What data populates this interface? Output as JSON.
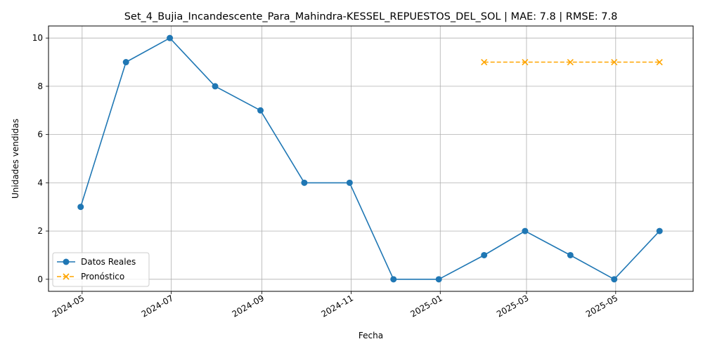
{
  "chart_data": {
    "type": "line",
    "title": "Set_4_Bujia_Incandescente_Para_Mahindra-KESSEL_REPUESTOS_DEL_SOL | MAE: 7.8 | RMSE: 7.8",
    "xlabel": "Fecha",
    "ylabel": "Unidades vendidas",
    "xlim": [
      "2024-04-08",
      "2025-06-23"
    ],
    "ylim": [
      -0.5,
      10.5
    ],
    "x_ticks": [
      "2024-05",
      "2024-07",
      "2024-09",
      "2024-11",
      "2025-01",
      "2025-03",
      "2025-05"
    ],
    "y_ticks": [
      0,
      2,
      4,
      6,
      8,
      10
    ],
    "grid": true,
    "legend_position": "lower-left",
    "series": [
      {
        "name": "Datos Reales",
        "color": "#1f77b4",
        "style": "solid",
        "marker": "circle",
        "x": [
          "2024-04-30",
          "2024-05-31",
          "2024-06-30",
          "2024-07-31",
          "2024-08-31",
          "2024-09-30",
          "2024-10-31",
          "2024-11-30",
          "2024-12-31",
          "2025-01-31",
          "2025-02-28",
          "2025-03-31",
          "2025-04-30",
          "2025-05-31"
        ],
        "values": [
          3,
          9,
          10,
          8,
          7,
          4,
          4,
          0,
          0,
          1,
          2,
          1,
          0,
          2
        ]
      },
      {
        "name": "Pronóstico",
        "color": "#ffa500",
        "style": "dashed",
        "marker": "x",
        "x": [
          "2025-01-31",
          "2025-02-28",
          "2025-03-31",
          "2025-04-30",
          "2025-05-31"
        ],
        "values": [
          9,
          9,
          9,
          9,
          9
        ]
      }
    ]
  }
}
